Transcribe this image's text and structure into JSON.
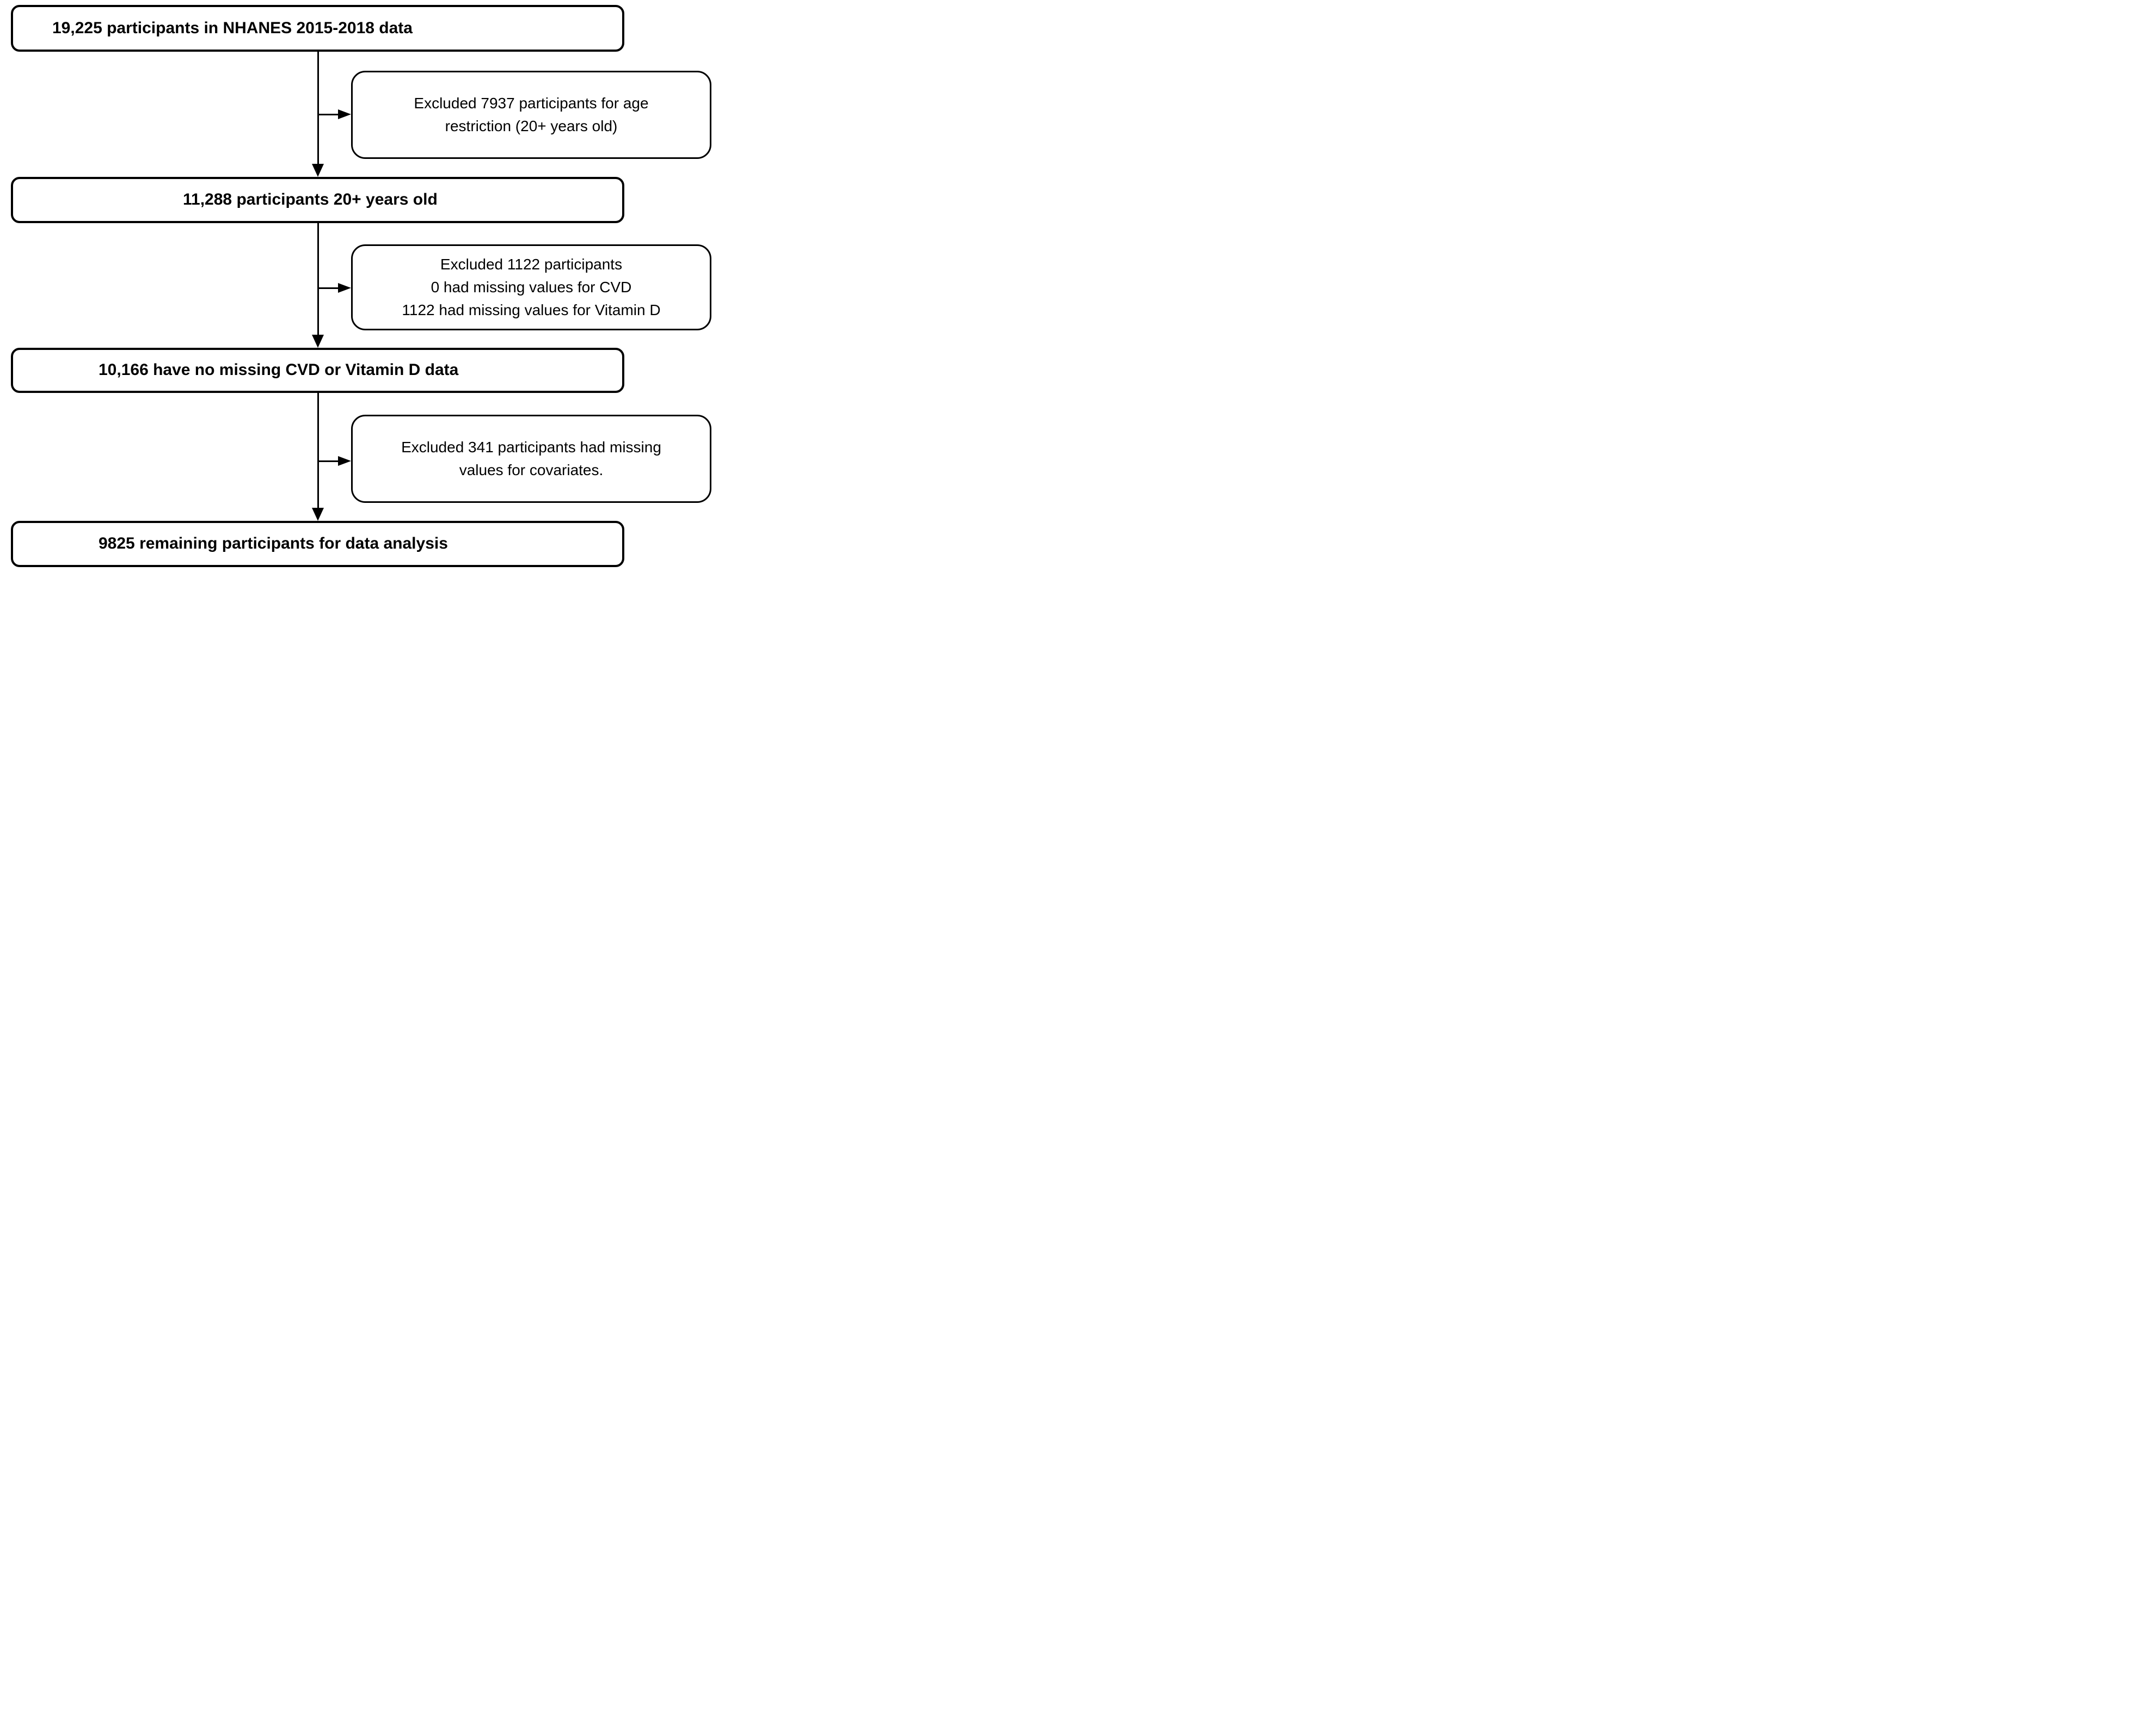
{
  "diagram": {
    "type": "participant-flow-chart",
    "colors": {
      "background": "#ffffff",
      "line": "#000000",
      "text": "#000000"
    },
    "main_boxes": [
      {
        "label": "19,225 participants in NHANES 2015-2018 data"
      },
      {
        "label": "11,288 participants 20+ years old"
      },
      {
        "label": "10,166 have no missing CVD or Vitamin D data"
      },
      {
        "label": "9825 remaining participants for data analysis"
      }
    ],
    "exclusion_boxes": [
      {
        "lines": [
          "Excluded 7937 participants for age",
          "restriction (20+ years old)"
        ]
      },
      {
        "lines": [
          "Excluded 1122 participants",
          "0 had missing values for CVD",
          "1122 had missing values for Vitamin D"
        ]
      },
      {
        "lines": [
          "Excluded 341 participants had missing",
          "values for covariates."
        ]
      }
    ]
  }
}
